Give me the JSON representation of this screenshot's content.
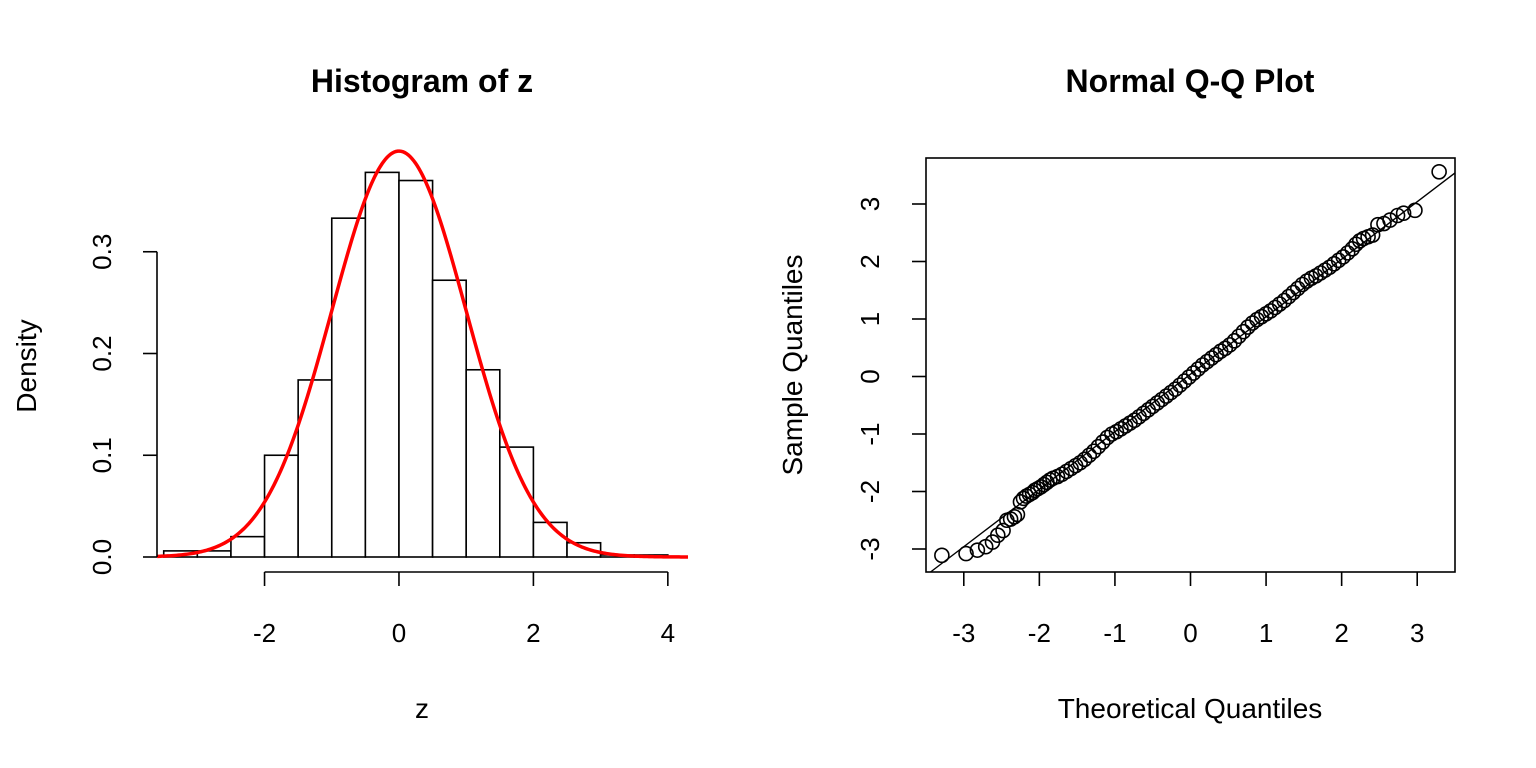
{
  "chart_data": [
    {
      "type": "bar",
      "subtype": "histogram",
      "title": "Histogram of z",
      "xlabel": "z",
      "ylabel": "Density",
      "bin_edges": [
        -3.5,
        -3.0,
        -2.5,
        -2.0,
        -1.5,
        -1.0,
        -0.5,
        0.0,
        0.5,
        1.0,
        1.5,
        2.0,
        2.5,
        3.0,
        3.5,
        4.0
      ],
      "values": [
        0.006,
        0.006,
        0.02,
        0.1,
        0.174,
        0.333,
        0.378,
        0.37,
        0.272,
        0.184,
        0.108,
        0.034,
        0.014,
        0.002,
        0.002
      ],
      "xlim": [
        -3.6,
        4.3
      ],
      "ylim": [
        0,
        0.4
      ],
      "x_ticks": [
        -2,
        0,
        2,
        4
      ],
      "x_tick_labels": [
        "-2",
        "0",
        "2",
        "4"
      ],
      "y_ticks": [
        0.0,
        0.1,
        0.2,
        0.3
      ],
      "y_tick_labels": [
        "0.0",
        "0.1",
        "0.2",
        "0.3"
      ],
      "overlay": {
        "type": "line",
        "function": "normal_density",
        "mean": 0,
        "sd": 1,
        "color": "#ff0000"
      },
      "grid": false,
      "box": false
    },
    {
      "type": "scatter",
      "subtype": "qq-plot",
      "title": "Normal Q-Q Plot",
      "xlabel": "Theoretical Quantiles",
      "ylabel": "Sample Quantiles",
      "xlim": [
        -3.5,
        3.5
      ],
      "ylim": [
        -3.4,
        3.8
      ],
      "x_ticks": [
        -3,
        -2,
        -1,
        0,
        1,
        2,
        3
      ],
      "x_tick_labels": [
        "-3",
        "-2",
        "-1",
        "0",
        "1",
        "2",
        "3"
      ],
      "y_ticks": [
        -3,
        -2,
        -1,
        0,
        1,
        2,
        3
      ],
      "y_tick_labels": [
        "-3",
        "-2",
        "-1",
        "0",
        "1",
        "2",
        "3"
      ],
      "reference_line": {
        "intercept": 0.04,
        "slope": 1.0
      },
      "points": [
        [
          -3.29,
          -3.11
        ],
        [
          -2.97,
          -3.08
        ],
        [
          -2.82,
          -3.02
        ],
        [
          -2.71,
          -2.96
        ],
        [
          -2.62,
          -2.88
        ],
        [
          -2.55,
          -2.76
        ],
        [
          -2.48,
          -2.68
        ],
        [
          -2.43,
          -2.5
        ],
        [
          -2.38,
          -2.48
        ],
        [
          -2.33,
          -2.44
        ],
        [
          -2.29,
          -2.4
        ],
        [
          -2.25,
          -2.18
        ],
        [
          -2.21,
          -2.12
        ],
        [
          -2.17,
          -2.08
        ],
        [
          -2.13,
          -2.05
        ],
        [
          -2.09,
          -2.02
        ],
        [
          -2.06,
          -1.98
        ],
        [
          -2.02,
          -1.95
        ],
        [
          -1.98,
          -1.92
        ],
        [
          -1.94,
          -1.88
        ],
        [
          -1.9,
          -1.84
        ],
        [
          -1.86,
          -1.8
        ],
        [
          -1.82,
          -1.77
        ],
        [
          -1.76,
          -1.74
        ],
        [
          -1.7,
          -1.7
        ],
        [
          -1.64,
          -1.65
        ],
        [
          -1.58,
          -1.6
        ],
        [
          -1.52,
          -1.55
        ],
        [
          -1.46,
          -1.5
        ],
        [
          -1.4,
          -1.44
        ],
        [
          -1.34,
          -1.37
        ],
        [
          -1.28,
          -1.3
        ],
        [
          -1.22,
          -1.22
        ],
        [
          -1.16,
          -1.14
        ],
        [
          -1.1,
          -1.06
        ],
        [
          -1.04,
          -1.0
        ],
        [
          -0.98,
          -0.96
        ],
        [
          -0.92,
          -0.91
        ],
        [
          -0.86,
          -0.86
        ],
        [
          -0.8,
          -0.81
        ],
        [
          -0.74,
          -0.76
        ],
        [
          -0.68,
          -0.7
        ],
        [
          -0.62,
          -0.64
        ],
        [
          -0.56,
          -0.58
        ],
        [
          -0.5,
          -0.52
        ],
        [
          -0.44,
          -0.46
        ],
        [
          -0.38,
          -0.4
        ],
        [
          -0.32,
          -0.34
        ],
        [
          -0.26,
          -0.28
        ],
        [
          -0.2,
          -0.22
        ],
        [
          -0.14,
          -0.15
        ],
        [
          -0.08,
          -0.08
        ],
        [
          -0.02,
          -0.01
        ],
        [
          0.04,
          0.06
        ],
        [
          0.1,
          0.13
        ],
        [
          0.16,
          0.2
        ],
        [
          0.22,
          0.26
        ],
        [
          0.28,
          0.32
        ],
        [
          0.34,
          0.38
        ],
        [
          0.4,
          0.44
        ],
        [
          0.46,
          0.49
        ],
        [
          0.52,
          0.55
        ],
        [
          0.58,
          0.62
        ],
        [
          0.64,
          0.7
        ],
        [
          0.7,
          0.78
        ],
        [
          0.76,
          0.86
        ],
        [
          0.82,
          0.93
        ],
        [
          0.88,
          0.99
        ],
        [
          0.94,
          1.04
        ],
        [
          1.0,
          1.09
        ],
        [
          1.06,
          1.14
        ],
        [
          1.12,
          1.2
        ],
        [
          1.18,
          1.26
        ],
        [
          1.24,
          1.32
        ],
        [
          1.3,
          1.39
        ],
        [
          1.36,
          1.46
        ],
        [
          1.42,
          1.53
        ],
        [
          1.48,
          1.6
        ],
        [
          1.54,
          1.66
        ],
        [
          1.6,
          1.71
        ],
        [
          1.66,
          1.75
        ],
        [
          1.72,
          1.8
        ],
        [
          1.78,
          1.85
        ],
        [
          1.84,
          1.9
        ],
        [
          1.9,
          1.96
        ],
        [
          1.96,
          2.02
        ],
        [
          2.02,
          2.08
        ],
        [
          2.08,
          2.15
        ],
        [
          2.14,
          2.22
        ],
        [
          2.19,
          2.3
        ],
        [
          2.24,
          2.36
        ],
        [
          2.29,
          2.4
        ],
        [
          2.35,
          2.43
        ],
        [
          2.41,
          2.46
        ],
        [
          2.48,
          2.64
        ],
        [
          2.56,
          2.66
        ],
        [
          2.64,
          2.72
        ],
        [
          2.74,
          2.8
        ],
        [
          2.82,
          2.84
        ],
        [
          2.97,
          2.89
        ],
        [
          3.29,
          3.56
        ]
      ],
      "grid": false,
      "box": true
    }
  ]
}
